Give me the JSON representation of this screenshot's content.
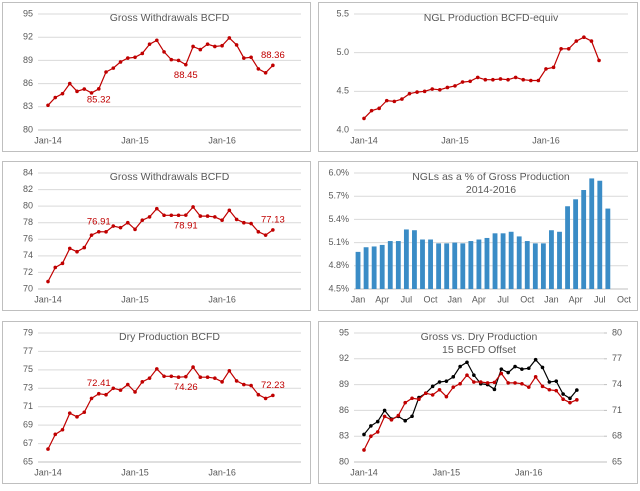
{
  "chart_data": [
    {
      "type": "line",
      "title": "Gross Withdrawals BCFD",
      "grid": true,
      "categories": [
        "Jan-14",
        null,
        null,
        null,
        null,
        null,
        null,
        null,
        null,
        null,
        null,
        null,
        "Jan-15",
        null,
        null,
        null,
        null,
        null,
        null,
        null,
        null,
        null,
        null,
        null,
        "Jan-16",
        null,
        null,
        null,
        null,
        null,
        null,
        null
      ],
      "series": [
        {
          "color": "#c00000",
          "values": [
            83.2,
            84.2,
            84.7,
            86.0,
            85.0,
            85.3,
            84.8,
            85.32,
            87.5,
            88.0,
            88.8,
            89.3,
            89.4,
            89.9,
            91.1,
            91.6,
            90.1,
            89.1,
            89.0,
            88.45,
            90.8,
            90.4,
            91.1,
            90.8,
            90.9,
            91.9,
            91.0,
            89.3,
            89.4,
            87.9,
            87.4,
            88.36
          ],
          "value_labels": [
            null,
            null,
            null,
            null,
            null,
            null,
            null,
            "85.32",
            null,
            null,
            null,
            null,
            null,
            null,
            null,
            null,
            null,
            null,
            null,
            "88.45",
            null,
            null,
            null,
            null,
            null,
            null,
            null,
            null,
            null,
            null,
            null,
            "88.36"
          ]
        }
      ],
      "ylim": [
        80,
        95
      ],
      "yticks": [
        80,
        83,
        86,
        89,
        92,
        95
      ]
    },
    {
      "type": "line",
      "title": "NGL Production BCFD-equiv",
      "grid": true,
      "categories": [
        "Jan-14",
        null,
        null,
        null,
        null,
        null,
        null,
        null,
        null,
        null,
        null,
        null,
        "Jan-15",
        null,
        null,
        null,
        null,
        null,
        null,
        null,
        null,
        null,
        null,
        null,
        "Jan-16",
        null,
        null,
        null,
        null,
        null,
        null,
        null
      ],
      "series": [
        {
          "color": "#c00000",
          "values": [
            4.15,
            4.25,
            4.28,
            4.38,
            4.37,
            4.4,
            4.47,
            4.49,
            4.5,
            4.53,
            4.52,
            4.55,
            4.57,
            4.62,
            4.63,
            4.68,
            4.65,
            4.65,
            4.66,
            4.65,
            4.68,
            4.65,
            4.64,
            4.64,
            4.79,
            4.81,
            5.05,
            5.05,
            5.15,
            5.2,
            5.15,
            4.9
          ]
        }
      ],
      "ylim": [
        4,
        5.5
      ],
      "yticks": [
        {
          "value": 4,
          "label": "4.0"
        },
        4.5,
        {
          "value": 5,
          "label": "5.0"
        },
        5.5
      ]
    },
    {
      "type": "line",
      "title": "Gross Withdrawals BCFD",
      "grid": true,
      "categories": [
        "Jan-14",
        null,
        null,
        null,
        null,
        null,
        null,
        null,
        null,
        null,
        null,
        null,
        "Jan-15",
        null,
        null,
        null,
        null,
        null,
        null,
        null,
        null,
        null,
        null,
        null,
        "Jan-16",
        null,
        null,
        null,
        null,
        null,
        null,
        null
      ],
      "series": [
        {
          "color": "#c00000",
          "values": [
            70.9,
            72.6,
            73.1,
            74.9,
            74.5,
            75.0,
            76.5,
            76.91,
            76.9,
            77.6,
            77.4,
            78.0,
            77.2,
            78.3,
            78.7,
            79.7,
            78.9,
            78.9,
            78.9,
            78.91,
            79.9,
            78.8,
            78.8,
            78.7,
            78.3,
            79.5,
            78.4,
            78.0,
            77.9,
            76.9,
            76.5,
            77.13
          ],
          "value_labels": [
            null,
            null,
            null,
            null,
            null,
            null,
            null,
            "76.91",
            null,
            null,
            null,
            null,
            null,
            null,
            null,
            null,
            null,
            null,
            null,
            "78.91",
            null,
            null,
            null,
            null,
            null,
            null,
            null,
            null,
            null,
            null,
            null,
            "77.13"
          ]
        }
      ],
      "ylim": [
        70,
        84
      ],
      "yticks": [
        70,
        72,
        74,
        76,
        78,
        80,
        82,
        84
      ]
    },
    {
      "type": "bar",
      "title": "NGLs as a % of Gross Production",
      "subtitle": "2014-2016",
      "grid": true,
      "color": "#3a8cc6",
      "categories": [
        "Jan",
        null,
        null,
        "Apr",
        null,
        null,
        "Jul",
        null,
        null,
        "Oct",
        null,
        null,
        "Jan",
        null,
        null,
        "Apr",
        null,
        null,
        "Jul",
        null,
        null,
        "Oct",
        null,
        null,
        "Jan",
        null,
        null,
        "Apr",
        null,
        null,
        "Jul",
        null,
        null,
        "Oct"
      ],
      "values": [
        4.98,
        5.04,
        5.05,
        5.07,
        5.12,
        5.12,
        5.27,
        5.26,
        5.14,
        5.14,
        5.09,
        5.09,
        5.1,
        5.09,
        5.12,
        5.14,
        5.16,
        5.22,
        5.22,
        5.24,
        5.18,
        5.12,
        5.09,
        5.09,
        5.26,
        5.24,
        5.57,
        5.66,
        5.78,
        5.93,
        5.9,
        5.54,
        null,
        null
      ],
      "ylim": [
        4.5,
        6.0
      ],
      "yticks": [
        {
          "value": 4.5,
          "label": "4.5%"
        },
        {
          "value": 4.8,
          "label": "4.8%"
        },
        {
          "value": 5.1,
          "label": "5.1%"
        },
        {
          "value": 5.4,
          "label": "5.4%"
        },
        {
          "value": 5.7,
          "label": "5.7%"
        },
        {
          "value": 6.0,
          "label": "6.0%"
        }
      ]
    },
    {
      "type": "line",
      "title": "Dry Production BCFD",
      "grid": true,
      "categories": [
        "Jan-14",
        null,
        null,
        null,
        null,
        null,
        null,
        null,
        null,
        null,
        null,
        null,
        "Jan-15",
        null,
        null,
        null,
        null,
        null,
        null,
        null,
        null,
        null,
        null,
        null,
        "Jan-16",
        null,
        null,
        null,
        null,
        null,
        null,
        null
      ],
      "series": [
        {
          "color": "#c00000",
          "values": [
            66.4,
            68.0,
            68.5,
            70.3,
            69.9,
            70.4,
            71.9,
            72.41,
            72.3,
            73.0,
            72.8,
            73.4,
            72.6,
            73.7,
            74.1,
            75.1,
            74.3,
            74.3,
            74.2,
            74.26,
            75.3,
            74.2,
            74.2,
            74.1,
            73.7,
            74.9,
            73.8,
            73.4,
            73.3,
            72.3,
            71.9,
            72.23
          ],
          "value_labels": [
            null,
            null,
            null,
            null,
            null,
            null,
            null,
            "72.41",
            null,
            null,
            null,
            null,
            null,
            null,
            null,
            null,
            null,
            null,
            null,
            "74.26",
            null,
            null,
            null,
            null,
            null,
            null,
            null,
            null,
            null,
            null,
            null,
            "72.23"
          ]
        }
      ],
      "ylim": [
        65,
        79
      ],
      "yticks": [
        65,
        67,
        69,
        71,
        73,
        75,
        77,
        79
      ]
    },
    {
      "type": "line",
      "title": "Gross vs. Dry Production",
      "subtitle": "15 BCFD Offset",
      "grid": true,
      "categories": [
        "Jan-14",
        null,
        null,
        null,
        null,
        null,
        null,
        null,
        null,
        null,
        null,
        null,
        "Jan-15",
        null,
        null,
        null,
        null,
        null,
        null,
        null,
        null,
        null,
        null,
        null,
        "Jan-16",
        null,
        null,
        null,
        null,
        null,
        null,
        null
      ],
      "series": [
        {
          "color": "#000000",
          "values": [
            83.2,
            84.2,
            84.7,
            86.0,
            85.0,
            85.3,
            84.8,
            85.32,
            87.5,
            88.0,
            88.8,
            89.3,
            89.4,
            89.9,
            91.1,
            91.6,
            90.1,
            89.1,
            89.0,
            88.45,
            90.8,
            90.4,
            91.1,
            90.8,
            90.9,
            91.9,
            91.0,
            89.3,
            89.4,
            87.9,
            87.4,
            88.36
          ]
        },
        {
          "color": "#c00000",
          "axis": "y2",
          "values": [
            66.4,
            68.0,
            68.5,
            70.3,
            69.9,
            70.4,
            71.9,
            72.41,
            72.3,
            73.0,
            72.8,
            73.4,
            72.6,
            73.7,
            74.1,
            75.1,
            74.3,
            74.3,
            74.2,
            74.26,
            75.3,
            74.2,
            74.2,
            74.1,
            73.7,
            74.9,
            73.8,
            73.4,
            73.3,
            72.3,
            71.9,
            72.23
          ]
        }
      ],
      "ylim": [
        80,
        95
      ],
      "yticks": [
        80,
        83,
        86,
        89,
        92,
        95
      ],
      "y2lim": [
        65,
        80
      ],
      "y2ticks": [
        65,
        68,
        71,
        74,
        77,
        80
      ]
    }
  ]
}
